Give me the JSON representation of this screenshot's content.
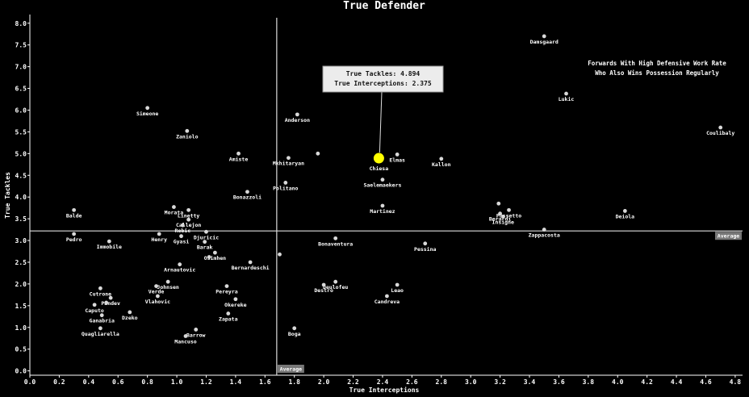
{
  "chart_data": {
    "type": "scatter",
    "title": "True Defender",
    "xlabel": "True Interceptions",
    "ylabel": "True Tackles",
    "xlim": [
      0.0,
      4.85
    ],
    "ylim": [
      -0.1,
      8.2
    ],
    "x_ticks": [
      "0.0",
      "0.2",
      "0.4",
      "0.6",
      "0.8",
      "1.0",
      "1.2",
      "1.4",
      "1.6",
      "1.8",
      "2.0",
      "2.2",
      "2.4",
      "2.6",
      "2.8",
      "3.0",
      "3.2",
      "3.4",
      "3.6",
      "3.8",
      "4.0",
      "4.2",
      "4.4",
      "4.6",
      "4.8"
    ],
    "y_ticks": [
      "0.0",
      "0.5",
      "1.0",
      "1.5",
      "2.0",
      "2.5",
      "3.0",
      "3.5",
      "4.0",
      "4.5",
      "5.0",
      "5.5",
      "6.0",
      "6.5",
      "7.0",
      "7.5",
      "8.0"
    ],
    "grid": false,
    "average": {
      "x": 1.68,
      "y": 3.22,
      "label": "Average"
    },
    "annotation": [
      "Forwards With High Defensive Work Rate",
      "Who Also Wins Possession Regularly"
    ],
    "highlight": {
      "name": "Chiesa",
      "x": 2.375,
      "y": 4.894,
      "color": "#ffff00",
      "tooltip": [
        "True Tackles: 4.894",
        "True Interceptions: 2.375"
      ]
    },
    "colors": {
      "background": "#000000",
      "points": "#d9d9d9",
      "highlight": "#ffff00"
    },
    "points": [
      {
        "name": "Damsgaard",
        "x": 3.5,
        "y": 7.7
      },
      {
        "name": "Lukic",
        "x": 3.65,
        "y": 6.38
      },
      {
        "name": "Coulibaly",
        "x": 4.7,
        "y": 5.6
      },
      {
        "name": "Simeone",
        "x": 0.8,
        "y": 6.05
      },
      {
        "name": "Anderson",
        "x": 1.82,
        "y": 5.9
      },
      {
        "name": "Zaniolo",
        "x": 1.07,
        "y": 5.52
      },
      {
        "name": "Amiste",
        "x": 1.42,
        "y": 5.0
      },
      {
        "name": "Mkhitaryan",
        "x": 1.76,
        "y": 4.9
      },
      {
        "name": "",
        "x": 1.96,
        "y": 5.0
      },
      {
        "name": "Elmas",
        "x": 2.5,
        "y": 4.98
      },
      {
        "name": "Kallon",
        "x": 2.8,
        "y": 4.88
      },
      {
        "name": "Saelemaekers",
        "x": 2.4,
        "y": 4.4
      },
      {
        "name": "Politano",
        "x": 1.74,
        "y": 4.33
      },
      {
        "name": "Bonazzoli",
        "x": 1.48,
        "y": 4.12
      },
      {
        "name": "Martinez",
        "x": 2.4,
        "y": 3.8
      },
      {
        "name": "Berardi",
        "x": 3.2,
        "y": 3.62
      },
      {
        "name": "",
        "x": 3.19,
        "y": 3.85
      },
      {
        "name": "Pussetto",
        "x": 3.26,
        "y": 3.7
      },
      {
        "name": "Insigne",
        "x": 3.22,
        "y": 3.55
      },
      {
        "name": "Deiola",
        "x": 4.05,
        "y": 3.68
      },
      {
        "name": "Zappacosta",
        "x": 3.5,
        "y": 3.25
      },
      {
        "name": "Balde",
        "x": 0.3,
        "y": 3.7
      },
      {
        "name": "Morata",
        "x": 0.98,
        "y": 3.77
      },
      {
        "name": "Linetty",
        "x": 1.08,
        "y": 3.7
      },
      {
        "name": "Callejon",
        "x": 1.08,
        "y": 3.48
      },
      {
        "name": "Rebic",
        "x": 1.04,
        "y": 3.35
      },
      {
        "name": "Djuricic",
        "x": 1.2,
        "y": 3.2
      },
      {
        "name": "Pedro",
        "x": 0.3,
        "y": 3.15
      },
      {
        "name": "Immobile",
        "x": 0.54,
        "y": 2.98
      },
      {
        "name": "Henry",
        "x": 0.88,
        "y": 3.15
      },
      {
        "name": "Gyasi",
        "x": 1.03,
        "y": 3.1
      },
      {
        "name": "Barak",
        "x": 1.19,
        "y": 2.97
      },
      {
        "name": "Bonaventura",
        "x": 2.08,
        "y": 3.05
      },
      {
        "name": "Pessina",
        "x": 2.69,
        "y": 2.93
      },
      {
        "name": "Osimhen",
        "x": 1.26,
        "y": 2.72
      },
      {
        "name": "",
        "x": 1.22,
        "y": 2.62
      },
      {
        "name": "",
        "x": 1.7,
        "y": 2.68
      },
      {
        "name": "Bernardeschi",
        "x": 1.5,
        "y": 2.5
      },
      {
        "name": "Arnautovic",
        "x": 1.02,
        "y": 2.45
      },
      {
        "name": "Johnsen",
        "x": 0.94,
        "y": 2.05
      },
      {
        "name": "Verde",
        "x": 0.86,
        "y": 1.95
      },
      {
        "name": "Pereyra",
        "x": 1.34,
        "y": 1.95
      },
      {
        "name": "Deulofeu",
        "x": 2.08,
        "y": 2.05
      },
      {
        "name": "Destro",
        "x": 2.0,
        "y": 1.98
      },
      {
        "name": "Leao",
        "x": 2.5,
        "y": 1.98
      },
      {
        "name": "Cutrone",
        "x": 0.48,
        "y": 1.9
      },
      {
        "name": "Pandev",
        "x": 0.55,
        "y": 1.68
      },
      {
        "name": "Vlahovic",
        "x": 0.87,
        "y": 1.72
      },
      {
        "name": "Okereke",
        "x": 1.4,
        "y": 1.65
      },
      {
        "name": "Candreva",
        "x": 2.43,
        "y": 1.72
      },
      {
        "name": "Caputo",
        "x": 0.44,
        "y": 1.52
      },
      {
        "name": "",
        "x": 0.52,
        "y": 1.57
      },
      {
        "name": "Dzeko",
        "x": 0.68,
        "y": 1.35
      },
      {
        "name": "Zapata",
        "x": 1.35,
        "y": 1.32
      },
      {
        "name": "Ganabria",
        "x": 0.49,
        "y": 1.28
      },
      {
        "name": "Quagliarella",
        "x": 0.48,
        "y": 0.98
      },
      {
        "name": "Barrow",
        "x": 1.13,
        "y": 0.95
      },
      {
        "name": "Mancuso",
        "x": 1.06,
        "y": 0.8
      },
      {
        "name": "Boga",
        "x": 1.8,
        "y": 0.98
      }
    ]
  }
}
